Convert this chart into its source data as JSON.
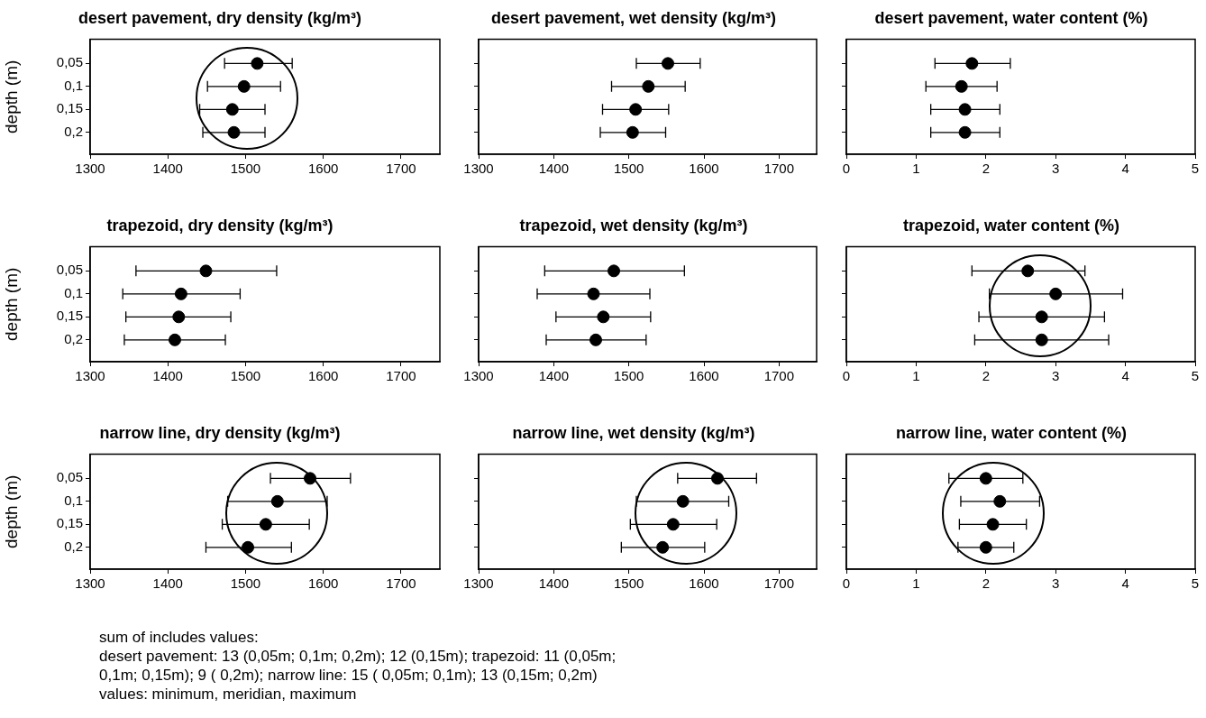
{
  "chart_data": [
    {
      "type": "scatter",
      "orientation": "horizontal",
      "title": "desert pavement, dry density (kg/m³)",
      "ylabel": "depth (m)",
      "categories": [
        "0,05",
        "0,1",
        "0,15",
        "0,2"
      ],
      "values": [
        1515,
        1498,
        1483,
        1485
      ],
      "errors": [
        [
          1473,
          1560
        ],
        [
          1451,
          1545
        ],
        [
          1441,
          1525
        ],
        [
          1445,
          1525
        ]
      ],
      "color": "#000000",
      "marker": "circle",
      "xlim": [
        1300,
        1750
      ],
      "xticks": [
        1300,
        1400,
        1500,
        1600,
        1700
      ]
    },
    {
      "type": "scatter",
      "orientation": "horizontal",
      "title": "desert pavement, wet density (kg/m³)",
      "categories": [
        "0,05",
        "0,1",
        "0,15",
        "0,2"
      ],
      "values": [
        1552,
        1526,
        1509,
        1505
      ],
      "errors": [
        [
          1510,
          1595
        ],
        [
          1477,
          1575
        ],
        [
          1465,
          1553
        ],
        [
          1462,
          1549
        ]
      ],
      "color": "#000000",
      "marker": "circle",
      "xlim": [
        1300,
        1750
      ],
      "xticks": [
        1300,
        1400,
        1500,
        1600,
        1700
      ],
      "tick_labels": "x"
    },
    {
      "type": "scatter",
      "orientation": "horizontal",
      "title": "desert pavement, water content (%)",
      "categories": [
        "0,05",
        "0,1",
        "0,15",
        "0,2"
      ],
      "values": [
        1.8,
        1.65,
        1.7,
        1.7
      ],
      "errors": [
        [
          1.27,
          2.35
        ],
        [
          1.14,
          2.16
        ],
        [
          1.21,
          2.2
        ],
        [
          1.21,
          2.2
        ]
      ],
      "color": "#000000",
      "marker": "circle",
      "xlim": [
        0,
        5
      ],
      "xticks": [
        0,
        1,
        2,
        3,
        4,
        5
      ],
      "tick_labels": "x"
    },
    {
      "type": "scatter",
      "orientation": "horizontal",
      "title": "trapezoid, dry density (kg/m³)",
      "ylabel": "depth (m)",
      "categories": [
        "0,05",
        "0,1",
        "0,15",
        "0,2"
      ],
      "values": [
        1449,
        1417,
        1414,
        1409
      ],
      "errors": [
        [
          1359,
          1540
        ],
        [
          1342,
          1493
        ],
        [
          1346,
          1481
        ],
        [
          1344,
          1474
        ]
      ],
      "color": "#000000",
      "marker": "circle",
      "xlim": [
        1300,
        1750
      ],
      "xticks": [
        1300,
        1400,
        1500,
        1600,
        1700
      ]
    },
    {
      "type": "scatter",
      "orientation": "horizontal",
      "title": "trapezoid, wet density (kg/m³)",
      "categories": [
        "0,05",
        "0,1",
        "0,15",
        "0,2"
      ],
      "values": [
        1480,
        1453,
        1466,
        1456
      ],
      "errors": [
        [
          1388,
          1574
        ],
        [
          1378,
          1528
        ],
        [
          1403,
          1529
        ],
        [
          1390,
          1523
        ]
      ],
      "color": "#000000",
      "marker": "circle",
      "xlim": [
        1300,
        1750
      ],
      "xticks": [
        1300,
        1400,
        1500,
        1600,
        1700
      ],
      "tick_labels": "x"
    },
    {
      "type": "scatter",
      "orientation": "horizontal",
      "title": "trapezoid, water content (%)",
      "categories": [
        "0,05",
        "0,1",
        "0,15",
        "0,2"
      ],
      "values": [
        2.6,
        3.0,
        2.8,
        2.8
      ],
      "errors": [
        [
          1.8,
          3.42
        ],
        [
          2.05,
          3.96
        ],
        [
          1.9,
          3.7
        ],
        [
          1.84,
          3.76
        ]
      ],
      "color": "#000000",
      "marker": "circle",
      "xlim": [
        0,
        5
      ],
      "xticks": [
        0,
        1,
        2,
        3,
        4,
        5
      ],
      "tick_labels": "x"
    },
    {
      "type": "scatter",
      "orientation": "horizontal",
      "title": "narrow line, dry density (kg/m³)",
      "ylabel": "depth (m)",
      "categories": [
        "0,05",
        "0,1",
        "0,15",
        "0,2"
      ],
      "values": [
        1583,
        1541,
        1526,
        1503
      ],
      "errors": [
        [
          1532,
          1635
        ],
        [
          1477,
          1605
        ],
        [
          1470,
          1582
        ],
        [
          1449,
          1559
        ]
      ],
      "color": "#000000",
      "marker": "circle",
      "xlim": [
        1300,
        1750
      ],
      "xticks": [
        1300,
        1400,
        1500,
        1600,
        1700
      ]
    },
    {
      "type": "scatter",
      "orientation": "horizontal",
      "title": "narrow line, wet density (kg/m³)",
      "categories": [
        "0,05",
        "0,1",
        "0,15",
        "0,2"
      ],
      "values": [
        1618,
        1572,
        1559,
        1545
      ],
      "errors": [
        [
          1565,
          1670
        ],
        [
          1510,
          1633
        ],
        [
          1502,
          1617
        ],
        [
          1490,
          1601
        ]
      ],
      "color": "#000000",
      "marker": "circle",
      "xlim": [
        1300,
        1750
      ],
      "xticks": [
        1300,
        1400,
        1500,
        1600,
        1700
      ],
      "tick_labels": "x"
    },
    {
      "type": "scatter",
      "orientation": "horizontal",
      "title": "narrow line, water content (%)",
      "categories": [
        "0,05",
        "0,1",
        "0,15",
        "0,2"
      ],
      "values": [
        2.0,
        2.2,
        2.1,
        2.0
      ],
      "errors": [
        [
          1.47,
          2.53
        ],
        [
          1.64,
          2.77
        ],
        [
          1.62,
          2.58
        ],
        [
          1.6,
          2.4
        ]
      ],
      "color": "#000000",
      "marker": "circle",
      "xlim": [
        0,
        5
      ],
      "xticks": [
        0,
        1,
        2,
        3,
        4,
        5
      ],
      "tick_labels": "x",
      "annotations": [
        "sum of includes values:",
        "desert pavement: 13 (0,05m; 0,1m; 0,2m); 12 (0,15m); trapezoid: 11 (0,05m; 0,1m; 0,15m); 9 ( 0,2m); narrow line: 15 ( 0,05m; 0,1m); 13 (0,15m; 0,2m)",
        "values: minimum, meridian, maximum"
      ]
    }
  ]
}
